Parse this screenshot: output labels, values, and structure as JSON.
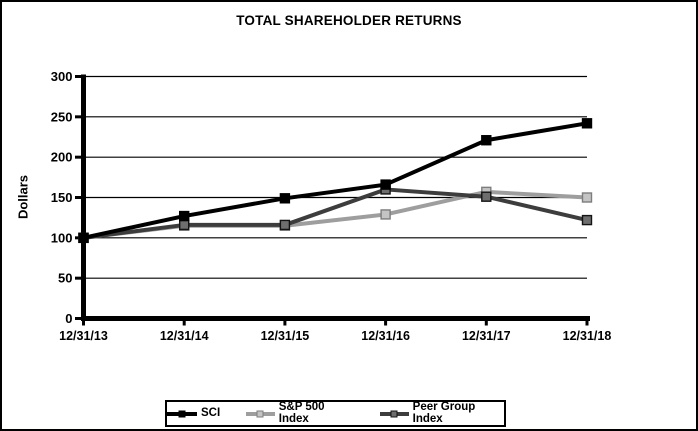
{
  "window": {
    "background": "#ffffff",
    "border_color": "#000000"
  },
  "chart_data": {
    "type": "line",
    "title": "TOTAL SHAREHOLDER RETURNS",
    "xlabel": "",
    "ylabel": "Dollars",
    "categories": [
      "12/31/13",
      "12/31/14",
      "12/31/15",
      "12/31/16",
      "12/31/17",
      "12/31/18"
    ],
    "yticks": [
      0,
      50,
      100,
      150,
      200,
      250,
      300
    ],
    "ylim": [
      0,
      300
    ],
    "grid": "horizontal",
    "legend_position": "bottom",
    "series": [
      {
        "name": "SCI",
        "values": [
          100,
          127,
          149,
          166,
          221,
          242
        ],
        "line_color": "#000000",
        "marker_fill": "#000000",
        "marker_edge": "#000000"
      },
      {
        "name": "S&P 500 Index",
        "values": [
          100,
          115,
          115,
          129,
          157,
          150
        ],
        "line_color": "#9e9e9e",
        "marker_fill": "#c4c4c4",
        "marker_edge": "#7d7d7d"
      },
      {
        "name": "Peer Group Index",
        "values": [
          100,
          116,
          116,
          160,
          151,
          122
        ],
        "line_color": "#3d3d3d",
        "marker_fill": "#6e6e6e",
        "marker_edge": "#141414"
      }
    ]
  }
}
